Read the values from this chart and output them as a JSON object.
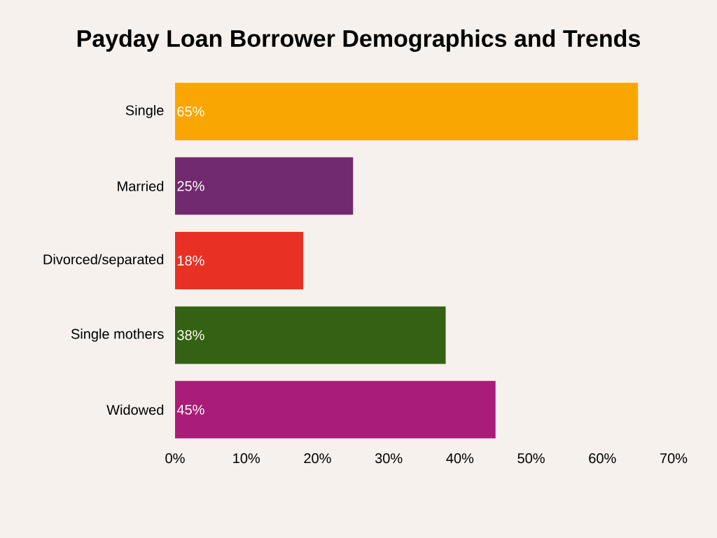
{
  "chart_data": {
    "type": "bar",
    "orientation": "horizontal",
    "title": "Payday Loan Borrower Demographics and Trends",
    "categories": [
      "Single",
      "Married",
      "Divorced/separated",
      "Single mothers",
      "Widowed"
    ],
    "values": [
      65,
      25,
      18,
      38,
      45
    ],
    "value_labels": [
      "65%",
      "25%",
      "18%",
      "38%",
      "45%"
    ],
    "colors": [
      "#f9a602",
      "#722a6e",
      "#e83025",
      "#356212",
      "#a91d78"
    ],
    "xlim": [
      0,
      70
    ],
    "xticks": [
      {
        "value": 0,
        "label": "0%"
      },
      {
        "value": 10,
        "label": "10%"
      },
      {
        "value": 20,
        "label": "20%"
      },
      {
        "value": 30,
        "label": "30%"
      },
      {
        "value": 40,
        "label": "40%"
      },
      {
        "value": 50,
        "label": "50%"
      },
      {
        "value": 60,
        "label": "60%"
      },
      {
        "value": 70,
        "label": "70%"
      }
    ]
  }
}
